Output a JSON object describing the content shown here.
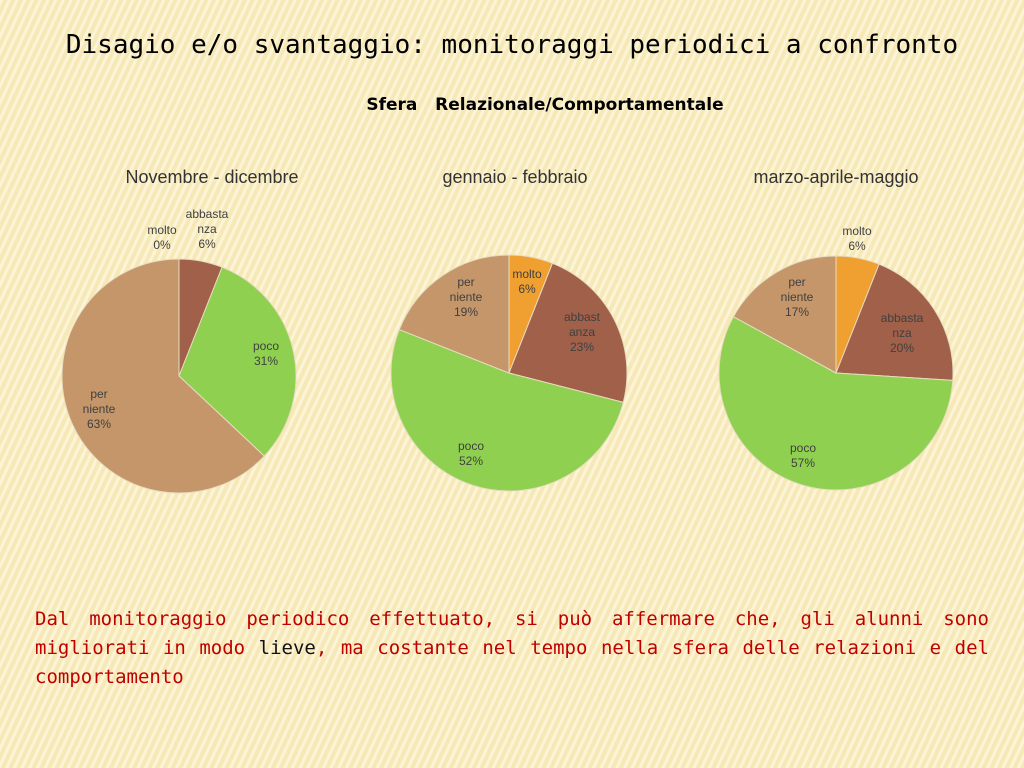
{
  "title": "Disagio e/o svantaggio: monitoraggi periodici a confronto",
  "subtitle": "Sfera   Relazionale/Comportamentale",
  "colors": {
    "molto": "#f0a030",
    "abbastanza": "#a0604a",
    "poco": "#90d050",
    "per_niente": "#c4966a"
  },
  "chart_data": [
    {
      "type": "pie",
      "title": "Novembre - dicembre",
      "slices": [
        {
          "key": "molto",
          "label": [
            "molto",
            "0%"
          ],
          "value": 0
        },
        {
          "key": "abbastanza",
          "label": [
            "abbasta",
            "nza",
            "6%"
          ],
          "value": 6
        },
        {
          "key": "poco",
          "label": [
            "poco",
            "31%"
          ],
          "value": 31
        },
        {
          "key": "per_niente",
          "label": [
            "per",
            "niente",
            "63%"
          ],
          "value": 63
        }
      ]
    },
    {
      "type": "pie",
      "title": "gennaio - febbraio",
      "slices": [
        {
          "key": "molto",
          "label": [
            "molto",
            "6%"
          ],
          "value": 6
        },
        {
          "key": "abbastanza",
          "label": [
            "abbast",
            "anza",
            "23%"
          ],
          "value": 23
        },
        {
          "key": "poco",
          "label": [
            "poco",
            "52%"
          ],
          "value": 52
        },
        {
          "key": "per_niente",
          "label": [
            "per",
            "niente",
            "19%"
          ],
          "value": 19
        }
      ]
    },
    {
      "type": "pie",
      "title": "marzo-aprile-maggio",
      "slices": [
        {
          "key": "molto",
          "label": [
            "molto",
            "6%"
          ],
          "value": 6
        },
        {
          "key": "abbastanza",
          "label": [
            "abbasta",
            "nza",
            "20%"
          ],
          "value": 20
        },
        {
          "key": "poco",
          "label": [
            "poco",
            "57%"
          ],
          "value": 57
        },
        {
          "key": "per_niente",
          "label": [
            "per",
            "niente",
            "17%"
          ],
          "value": 17
        }
      ]
    }
  ],
  "conclusion": {
    "part1": "Dal monitoraggio periodico effettuato, si può affermare che, gli alunni sono migliorati in modo ",
    "emphasis": "lieve",
    "part2": ", ma costante nel tempo nella sfera delle relazioni e del comportamento"
  }
}
